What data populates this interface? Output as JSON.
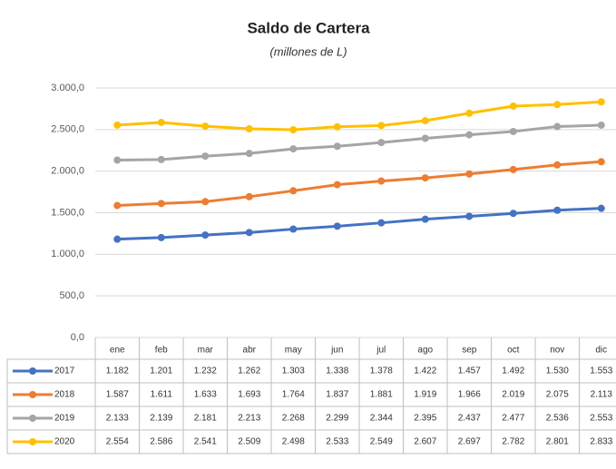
{
  "chart_data": {
    "type": "line",
    "title": "Saldo de Cartera",
    "subtitle": "(millones de L)",
    "categories": [
      "ene",
      "feb",
      "mar",
      "abr",
      "may",
      "jun",
      "jul",
      "ago",
      "sep",
      "oct",
      "nov",
      "dic"
    ],
    "series": [
      {
        "name": "2017",
        "color": "#4472c4",
        "values": [
          1182,
          1201,
          1232,
          1262,
          1303,
          1338,
          1378,
          1422,
          1457,
          1492,
          1530,
          1553
        ],
        "value_labels": [
          "1.182",
          "1.201",
          "1.232",
          "1.262",
          "1.303",
          "1.338",
          "1.378",
          "1.422",
          "1.457",
          "1.492",
          "1.530",
          "1.553"
        ]
      },
      {
        "name": "2018",
        "color": "#ed7d31",
        "values": [
          1587,
          1611,
          1633,
          1693,
          1764,
          1837,
          1881,
          1919,
          1966,
          2019,
          2075,
          2113
        ],
        "value_labels": [
          "1.587",
          "1.611",
          "1.633",
          "1.693",
          "1.764",
          "1.837",
          "1.881",
          "1.919",
          "1.966",
          "2.019",
          "2.075",
          "2.113"
        ]
      },
      {
        "name": "2019",
        "color": "#a5a5a5",
        "values": [
          2133,
          2139,
          2181,
          2213,
          2268,
          2299,
          2344,
          2395,
          2437,
          2477,
          2536,
          2553
        ],
        "value_labels": [
          "2.133",
          "2.139",
          "2.181",
          "2.213",
          "2.268",
          "2.299",
          "2.344",
          "2.395",
          "2.437",
          "2.477",
          "2.536",
          "2.553"
        ]
      },
      {
        "name": "2020",
        "color": "#ffc000",
        "values": [
          2554,
          2586,
          2541,
          2509,
          2498,
          2533,
          2549,
          2607,
          2697,
          2782,
          2801,
          2833
        ],
        "value_labels": [
          "2.554",
          "2.586",
          "2.541",
          "2.509",
          "2.498",
          "2.533",
          "2.549",
          "2.607",
          "2.697",
          "2.782",
          "2.801",
          "2.833"
        ]
      }
    ],
    "ylim": [
      0,
      3000
    ],
    "yticks": [
      {
        "value": 0,
        "label": "0,0"
      },
      {
        "value": 500,
        "label": "500,0"
      },
      {
        "value": 1000,
        "label": "1.000,0"
      },
      {
        "value": 1500,
        "label": "1.500,0"
      },
      {
        "value": 2000,
        "label": "2.000,0"
      },
      {
        "value": 2500,
        "label": "2.500,0"
      },
      {
        "value": 3000,
        "label": "3.000,0"
      }
    ],
    "grid": true
  }
}
